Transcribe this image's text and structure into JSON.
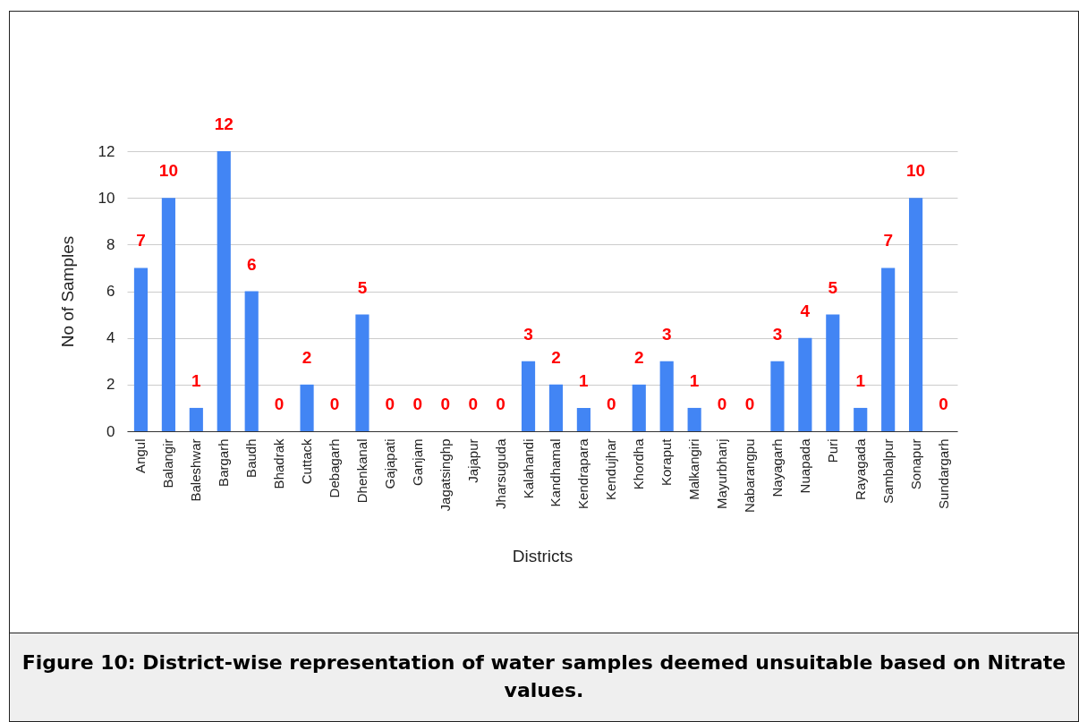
{
  "chart_data": {
    "type": "bar",
    "title": "Figure 10: District-wise representation of water samples deemed unsuitable based on Nitrate values.",
    "xlabel": "Districts",
    "ylabel": "No of Samples",
    "categories": [
      "Angul",
      "Balangir",
      "Baleshwar",
      "Bargarh",
      "Baudh",
      "Bhadrak",
      "Cuttack",
      "Debagarh",
      "Dhenkanal",
      "Gajapati",
      "Ganjam",
      "Jagatsinghp",
      "Jajapur",
      "Jharsuguda",
      "Kalahandi",
      "Kandhamal",
      "Kendrapara",
      "Kendujhar",
      "Khordha",
      "Koraput",
      "Malkangiri",
      "Mayurbhanj",
      "Nabarangpu",
      "Nayagarh",
      "Nuapada",
      "Puri",
      "Rayagada",
      "Sambalpur",
      "Sonapur",
      "Sundargarh"
    ],
    "values": [
      7,
      10,
      1,
      12,
      6,
      0,
      2,
      0,
      5,
      0,
      0,
      0,
      0,
      0,
      3,
      2,
      1,
      0,
      2,
      3,
      1,
      0,
      0,
      3,
      4,
      5,
      1,
      7,
      10,
      0
    ],
    "color": "#4285f4",
    "ylim": [
      0,
      12
    ],
    "yticks": [
      0,
      2,
      4,
      6,
      8,
      10,
      12
    ],
    "grid": "y",
    "data_labels": true
  }
}
